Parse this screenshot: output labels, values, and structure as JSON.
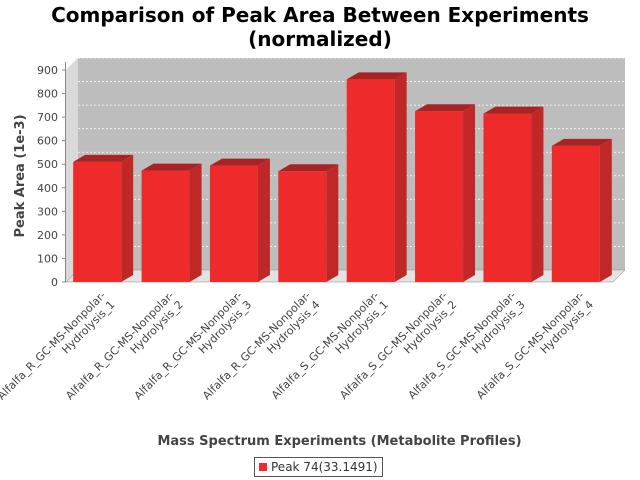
{
  "chart_data": {
    "type": "bar",
    "title": [
      "Comparison of Peak Area Between Experiments",
      "(normalized)"
    ],
    "xlabel": "Mass Spectrum Experiments (Metabolite Profiles)",
    "ylabel": "Peak Area (1e-3)",
    "ylim": [
      0,
      900
    ],
    "yticks": [
      0,
      100,
      200,
      300,
      400,
      500,
      600,
      700,
      800,
      900
    ],
    "categories": [
      [
        "Alfalfa_R_GC-MS-Nonpolar-",
        "Hydrolysis_1"
      ],
      [
        "Alfalfa_R_GC-MS-Nonpolar-",
        "Hydrolysis_2"
      ],
      [
        "Alfalfa_R_GC-MS-Nonpolar-",
        "Hydrolysis_3"
      ],
      [
        "Alfalfa_R_GC-MS-Nonpolar-",
        "Hydrolysis_4"
      ],
      [
        "Alfalfa_S_GC-MS-Nonpolar-",
        "Hydrolysis_1"
      ],
      [
        "Alfalfa_S_GC-MS-Nonpolar-",
        "Hydrolysis_2"
      ],
      [
        "Alfalfa_S_GC-MS-Nonpolar-",
        "Hydrolysis_3"
      ],
      [
        "Alfalfa_S_GC-MS-Nonpolar-",
        "Hydrolysis_4"
      ]
    ],
    "series": [
      {
        "name": "Peak 74(33.1491)",
        "color": "#ee2a2a",
        "values": [
          510,
          473,
          494,
          470,
          860,
          725,
          715,
          578
        ]
      }
    ],
    "grid": true,
    "legend_position": "bottom",
    "style": "3d-bar",
    "plot_background": "#c0c0c0"
  }
}
